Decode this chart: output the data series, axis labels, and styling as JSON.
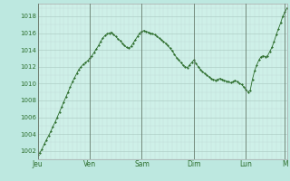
{
  "bg_color": "#bde8e0",
  "plot_bg_color": "#cef0e8",
  "line_color": "#2d6e2d",
  "marker_color": "#2d6e2d",
  "grid_color_major": "#a8c8c0",
  "grid_color_minor": "#c0dcd8",
  "vline_color": "#556655",
  "ylabel_color": "#2d6e2d",
  "xlabel_color": "#2d6e2d",
  "ylim": [
    1001.0,
    1019.5
  ],
  "yticks": [
    1002,
    1004,
    1006,
    1008,
    1010,
    1012,
    1014,
    1016,
    1018
  ],
  "day_labels": [
    "Jeu",
    "Ven",
    "Sam",
    "Dim",
    "Lun",
    "M"
  ],
  "day_positions": [
    0,
    24,
    48,
    72,
    96,
    114
  ],
  "pressure": [
    1001.5,
    1001.8,
    1002.2,
    1002.8,
    1003.3,
    1003.8,
    1004.3,
    1004.9,
    1005.4,
    1006.0,
    1006.6,
    1007.2,
    1007.8,
    1008.4,
    1009.0,
    1009.6,
    1010.2,
    1010.7,
    1011.2,
    1011.7,
    1012.0,
    1012.3,
    1012.5,
    1012.7,
    1013.0,
    1013.3,
    1013.7,
    1014.1,
    1014.5,
    1015.0,
    1015.4,
    1015.7,
    1015.9,
    1016.0,
    1016.1,
    1015.8,
    1015.6,
    1015.3,
    1015.1,
    1014.8,
    1014.5,
    1014.3,
    1014.2,
    1014.4,
    1014.8,
    1015.2,
    1015.6,
    1016.0,
    1016.2,
    1016.3,
    1016.2,
    1016.1,
    1016.0,
    1015.9,
    1015.8,
    1015.6,
    1015.4,
    1015.2,
    1015.0,
    1014.8,
    1014.5,
    1014.2,
    1013.9,
    1013.5,
    1013.1,
    1012.8,
    1012.5,
    1012.2,
    1012.0,
    1011.9,
    1012.2,
    1012.5,
    1012.8,
    1012.4,
    1012.0,
    1011.7,
    1011.4,
    1011.2,
    1011.0,
    1010.8,
    1010.6,
    1010.5,
    1010.4,
    1010.5,
    1010.6,
    1010.5,
    1010.4,
    1010.3,
    1010.2,
    1010.1,
    1010.2,
    1010.4,
    1010.2,
    1010.0,
    1009.9,
    1009.6,
    1009.3,
    1009.0,
    1009.2,
    1010.5,
    1011.5,
    1012.2,
    1012.8,
    1013.2,
    1013.3,
    1013.2,
    1013.3,
    1013.8,
    1014.3,
    1015.0,
    1015.8,
    1016.5,
    1017.2,
    1018.0,
    1018.5,
    1019.0
  ]
}
